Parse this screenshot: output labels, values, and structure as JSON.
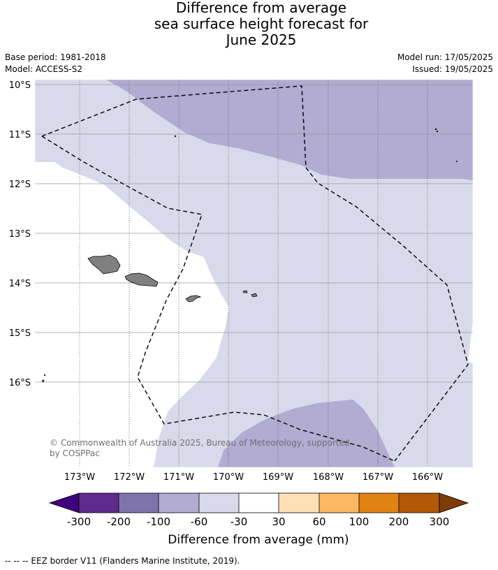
{
  "title": {
    "line1": "Difference from average",
    "line2": "sea surface height forecast for",
    "line3": "June 2025"
  },
  "meta": {
    "base_period": "Base period: 1981-2018",
    "model": "Model: ACCESS-S2",
    "model_run": "Model run: 17/05/2025",
    "issued": "Issued: 19/05/2025"
  },
  "map": {
    "lat_labels": [
      "10°S",
      "11°S",
      "12°S",
      "13°S",
      "14°S",
      "15°S",
      "16°S"
    ],
    "lon_labels": [
      "173°W",
      "172°W",
      "171°W",
      "170°W",
      "169°W",
      "168°W",
      "167°W",
      "166°W"
    ],
    "copyright_line1": "© Commonwealth of Australia 2025, Bureau of Meteorology, supported",
    "copyright_line2": "by COSPPac",
    "land_color": "#808080",
    "eez_style": "dashed-black"
  },
  "colorbar": {
    "label": "Difference from average (mm)",
    "ticks": [
      "-300",
      "-200",
      "-100",
      "-60",
      "-30",
      "30",
      "60",
      "100",
      "200",
      "300"
    ],
    "colors": [
      "#3f007d",
      "#5e2a8c",
      "#8073ac",
      "#b2abd2",
      "#d8daeb",
      "#ffffff",
      "#fee0b6",
      "#fdb863",
      "#e08214",
      "#b35806",
      "#7f3b08"
    ]
  },
  "footer": "--  --  -- EEZ border V11 (Flanders Marine Institute, 2019)."
}
